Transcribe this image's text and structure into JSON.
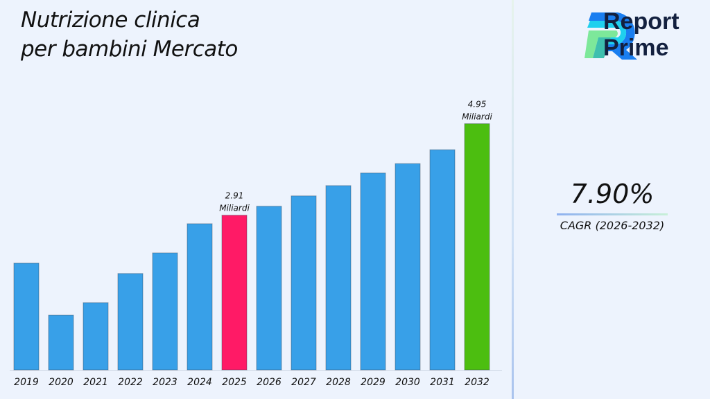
{
  "title_lines": [
    "Nutrizione clinica",
    "per bambini Mercato"
  ],
  "logo": {
    "line1": "Report",
    "line2": "Prime"
  },
  "cagr": {
    "value": "7.90%",
    "label": "CAGR (2026-2032)"
  },
  "colors": {
    "bar": "#38a0e8",
    "highlight_2025": "#ff1a66",
    "highlight_2032": "#4cbe10",
    "background": "#edf3fd"
  },
  "chart_data": {
    "type": "bar",
    "title": "Nutrizione clinica per bambini Mercato",
    "xlabel": "",
    "ylabel": "",
    "categories": [
      "2019",
      "2020",
      "2021",
      "2022",
      "2023",
      "2024",
      "2025",
      "2026",
      "2027",
      "2028",
      "2029",
      "2030",
      "2031",
      "2032"
    ],
    "values": [
      1.84,
      0.68,
      0.96,
      1.61,
      2.07,
      2.72,
      2.91,
      3.11,
      3.34,
      3.57,
      3.85,
      4.06,
      4.37,
      4.95
    ],
    "unit": "Miliardi",
    "data_labels": [
      {
        "category": "2025",
        "value": "2.91",
        "unit": "Miliardi"
      },
      {
        "category": "2032",
        "value": "4.95",
        "unit": "Miliardi"
      }
    ],
    "ylim": [
      -0.54,
      5.5
    ],
    "grid": false,
    "legend": "none"
  }
}
